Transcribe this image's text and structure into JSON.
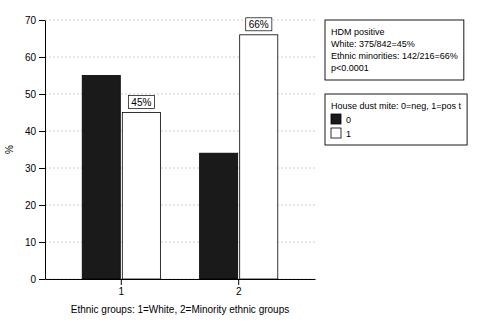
{
  "chart_data": {
    "type": "bar",
    "categories": [
      "1",
      "2"
    ],
    "x_label": "Ethnic groups: 1=White, 2=Minority ethnic groups",
    "y_label": "%",
    "ylim": [
      0,
      70
    ],
    "yticks": [
      0,
      10,
      20,
      30,
      40,
      50,
      60,
      70
    ],
    "grid": true,
    "legend": "right",
    "legend_title": "House dust mite: 0=neg, 1=pos t",
    "series": [
      {
        "name": "0",
        "color": "#1a1a1a",
        "values": [
          55,
          34
        ]
      },
      {
        "name": "1",
        "color": "#ffffff",
        "values": [
          45,
          66
        ],
        "data_labels": true,
        "value_labels": [
          "45%",
          "66%"
        ]
      }
    ],
    "annotations": [
      "HDM positive",
      "White: 375/842=45%",
      "Ethnic minorities: 142/216=66%",
      "p<0.0001"
    ]
  }
}
